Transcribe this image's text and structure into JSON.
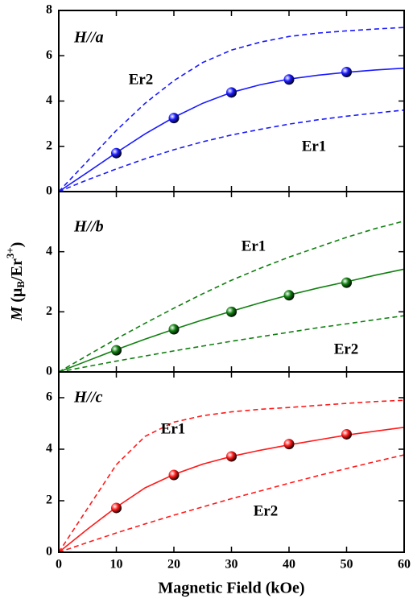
{
  "chart_data": [
    {
      "type": "line",
      "label": "H//a",
      "color": "#1a1aff",
      "xlim": [
        0,
        60
      ],
      "xticks": [
        0,
        10,
        20,
        30,
        40,
        50,
        60
      ],
      "ylim": [
        0,
        8
      ],
      "yticks": [
        0,
        2,
        4,
        6,
        8
      ],
      "annotations": [
        "Er2",
        "Er1"
      ],
      "series": [
        {
          "style": "dashed",
          "x": [
            0,
            5,
            10,
            15,
            20,
            25,
            30,
            35,
            40,
            45,
            50,
            55,
            60
          ],
          "values": [
            0,
            1.35,
            2.7,
            3.9,
            4.9,
            5.7,
            6.25,
            6.6,
            6.85,
            7.0,
            7.1,
            7.18,
            7.25
          ]
        },
        {
          "style": "dashed",
          "x": [
            0,
            5,
            10,
            15,
            20,
            25,
            30,
            35,
            40,
            45,
            50,
            55,
            60
          ],
          "values": [
            0,
            0.52,
            1.0,
            1.45,
            1.85,
            2.2,
            2.5,
            2.75,
            2.98,
            3.17,
            3.33,
            3.47,
            3.6
          ]
        },
        {
          "style": "solid",
          "x": [
            0,
            5,
            10,
            15,
            20,
            25,
            30,
            35,
            40,
            45,
            50,
            55,
            60
          ],
          "values": [
            0,
            0.85,
            1.72,
            2.55,
            3.28,
            3.9,
            4.38,
            4.72,
            4.97,
            5.14,
            5.27,
            5.37,
            5.45
          ]
        },
        {
          "style": "markers",
          "x": [
            10,
            20,
            30,
            40,
            50
          ],
          "values": [
            1.7,
            3.25,
            4.38,
            4.95,
            5.28
          ]
        }
      ]
    },
    {
      "type": "line",
      "label": "H//b",
      "color": "#108010",
      "xlim": [
        0,
        60
      ],
      "xticks": [
        0,
        10,
        20,
        30,
        40,
        50,
        60
      ],
      "ylim": [
        0,
        6
      ],
      "yticks": [
        0,
        2,
        4
      ],
      "annotations": [
        "Er1",
        "Er2"
      ],
      "ylabel": [
        "M",
        " (μ",
        "B",
        "/Er",
        "3+",
        ")"
      ],
      "series": [
        {
          "style": "dashed",
          "x": [
            0,
            5,
            10,
            15,
            20,
            25,
            30,
            35,
            40,
            45,
            50,
            55,
            60
          ],
          "values": [
            0,
            0.55,
            1.1,
            1.62,
            2.12,
            2.6,
            3.05,
            3.45,
            3.82,
            4.15,
            4.48,
            4.77,
            5.02
          ]
        },
        {
          "style": "dashed",
          "x": [
            0,
            5,
            10,
            15,
            20,
            25,
            30,
            35,
            40,
            45,
            50,
            55,
            60
          ],
          "values": [
            0,
            0.18,
            0.36,
            0.53,
            0.7,
            0.86,
            1.02,
            1.17,
            1.32,
            1.47,
            1.6,
            1.74,
            1.87
          ]
        },
        {
          "style": "solid",
          "x": [
            0,
            5,
            10,
            15,
            20,
            25,
            30,
            35,
            40,
            45,
            50,
            55,
            60
          ],
          "values": [
            0,
            0.37,
            0.74,
            1.09,
            1.42,
            1.73,
            2.02,
            2.3,
            2.56,
            2.79,
            3.0,
            3.22,
            3.42
          ]
        },
        {
          "style": "markers",
          "x": [
            10,
            20,
            30,
            40,
            50
          ],
          "values": [
            0.72,
            1.42,
            2.0,
            2.55,
            2.97
          ]
        }
      ]
    },
    {
      "type": "line",
      "label": "H//c",
      "color": "#ff1a1a",
      "xlim": [
        0,
        60
      ],
      "xticks": [
        0,
        10,
        20,
        30,
        40,
        50,
        60
      ],
      "ylim": [
        0,
        7
      ],
      "yticks": [
        0,
        2,
        4,
        6
      ],
      "annotations": [
        "Er1",
        "Er2"
      ],
      "xlabel": "Magnetic Field (kOe)",
      "series": [
        {
          "style": "dashed",
          "x": [
            0,
            5,
            10,
            15,
            20,
            25,
            30,
            35,
            40,
            45,
            50,
            55,
            60
          ],
          "values": [
            0,
            1.7,
            3.4,
            4.5,
            5.05,
            5.3,
            5.45,
            5.55,
            5.62,
            5.7,
            5.78,
            5.85,
            5.9
          ]
        },
        {
          "style": "dashed",
          "x": [
            0,
            5,
            10,
            15,
            20,
            25,
            30,
            35,
            40,
            45,
            50,
            55,
            60
          ],
          "values": [
            0,
            0.38,
            0.75,
            1.1,
            1.44,
            1.76,
            2.08,
            2.38,
            2.68,
            2.97,
            3.25,
            3.52,
            3.78
          ]
        },
        {
          "style": "solid",
          "x": [
            0,
            5,
            10,
            15,
            20,
            25,
            30,
            35,
            40,
            45,
            50,
            55,
            60
          ],
          "values": [
            0,
            0.9,
            1.75,
            2.5,
            3.02,
            3.42,
            3.72,
            3.96,
            4.17,
            4.36,
            4.55,
            4.7,
            4.85
          ]
        },
        {
          "style": "markers",
          "x": [
            10,
            20,
            30,
            40,
            50
          ],
          "values": [
            1.72,
            3.0,
            3.72,
            4.2,
            4.58
          ]
        }
      ]
    }
  ]
}
